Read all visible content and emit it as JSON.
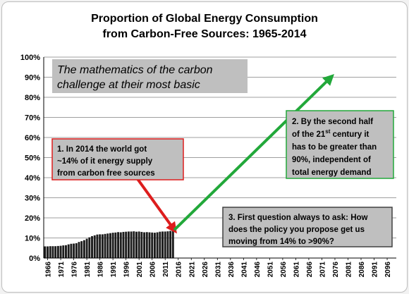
{
  "chart_data": {
    "type": "bar",
    "title": "Proportion of Global Energy Consumption",
    "subtitle": "from Carbon-Free Sources:  1965-2014",
    "xlabel": "",
    "ylabel": "",
    "ylim": [
      0,
      100
    ],
    "yticks": [
      "0%",
      "10%",
      "20%",
      "30%",
      "40%",
      "50%",
      "60%",
      "70%",
      "80%",
      "90%",
      "100%"
    ],
    "xticks": [
      "1966",
      "1971",
      "1976",
      "1981",
      "1986",
      "1991",
      "1996",
      "2001",
      "2006",
      "2011",
      "2016",
      "2021",
      "2026",
      "2031",
      "2036",
      "2041",
      "2046",
      "2051",
      "2056",
      "2061",
      "2066",
      "2071",
      "2076",
      "2081",
      "2086",
      "2091",
      "2096"
    ],
    "x_start_year": 1965,
    "x_end_year": 2100,
    "years": [
      1965,
      1966,
      1967,
      1968,
      1969,
      1970,
      1971,
      1972,
      1973,
      1974,
      1975,
      1976,
      1977,
      1978,
      1979,
      1980,
      1981,
      1982,
      1983,
      1984,
      1985,
      1986,
      1987,
      1988,
      1989,
      1990,
      1991,
      1992,
      1993,
      1994,
      1995,
      1996,
      1997,
      1998,
      1999,
      2000,
      2001,
      2002,
      2003,
      2004,
      2005,
      2006,
      2007,
      2008,
      2009,
      2010,
      2011,
      2012,
      2013,
      2014
    ],
    "values": [
      5.8,
      5.8,
      5.9,
      5.9,
      5.9,
      6.0,
      6.1,
      6.3,
      6.4,
      6.8,
      7.1,
      7.2,
      7.4,
      8.0,
      8.4,
      8.9,
      9.6,
      10.3,
      10.9,
      11.3,
      11.7,
      11.8,
      11.8,
      12.0,
      12.2,
      12.4,
      12.6,
      12.7,
      12.9,
      12.8,
      13.0,
      13.1,
      13.2,
      13.2,
      13.3,
      13.1,
      13.2,
      13.0,
      12.8,
      12.9,
      12.8,
      12.7,
      12.6,
      12.8,
      13.1,
      13.2,
      13.2,
      13.3,
      13.5,
      13.7
    ],
    "arrows": [
      {
        "name": "red",
        "from_year": 2000,
        "from_pct": 41,
        "to_year": 2015,
        "to_pct": 14,
        "color": "#dd1d1d"
      },
      {
        "name": "green",
        "from_year": 2015,
        "from_pct": 14,
        "to_year": 2075,
        "to_pct": 90,
        "color": "#22a83a"
      }
    ],
    "annotations": {
      "basic": [
        "The mathematics of the carbon",
        "challenge at their most basic"
      ],
      "note1": [
        "1. In 2014 the world got",
        "~14% of it energy supply",
        "from carbon free sources"
      ],
      "note2_line1": "2. By the second half",
      "note2_line2_pre": "of the 21",
      "note2_line2_sup": "st",
      "note2_line2_post": " century it",
      "note2_lines_rest": [
        "has to be greater than",
        "90%, independent of",
        "total energy demand"
      ],
      "note3": [
        "3. First question always to ask: How",
        "does the policy you propose get us",
        "moving from 14% to >90%?"
      ]
    },
    "colors": {
      "bars": "#1c1c1c",
      "note_gray": "#bfbfbf",
      "note1_border": "#dd1d1d",
      "note2_border": "#22a83a",
      "note3_border": "#404040"
    }
  }
}
